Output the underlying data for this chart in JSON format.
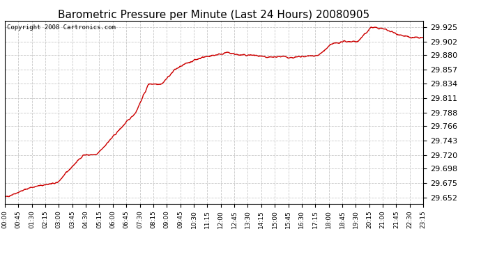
{
  "title": "Barometric Pressure per Minute (Last 24 Hours) 20080905",
  "copyright": "Copyright 2008 Cartronics.com",
  "line_color": "#cc0000",
  "background_color": "#ffffff",
  "plot_bg_color": "#ffffff",
  "grid_color": "#c8c8c8",
  "yticks": [
    29.652,
    29.675,
    29.698,
    29.72,
    29.743,
    29.766,
    29.788,
    29.811,
    29.834,
    29.857,
    29.88,
    29.902,
    29.925
  ],
  "ylim": [
    29.642,
    29.935
  ],
  "xtick_labels": [
    "00:00",
    "00:45",
    "01:30",
    "02:15",
    "03:00",
    "03:45",
    "04:30",
    "05:15",
    "06:00",
    "06:45",
    "07:30",
    "08:15",
    "09:00",
    "09:45",
    "10:30",
    "11:15",
    "12:00",
    "12:45",
    "13:30",
    "14:15",
    "15:00",
    "15:45",
    "16:30",
    "17:15",
    "18:00",
    "18:45",
    "19:30",
    "20:15",
    "21:00",
    "21:45",
    "22:30",
    "23:15"
  ],
  "title_fontsize": 11,
  "copyright_fontsize": 6.5,
  "ytick_fontsize": 8,
  "xtick_fontsize": 6.5,
  "line_width": 1.0,
  "control_t": [
    0,
    45,
    90,
    135,
    180,
    225,
    270,
    315,
    360,
    405,
    450,
    495,
    540,
    585,
    630,
    675,
    720,
    765,
    810,
    855,
    900,
    945,
    990,
    1035,
    1080,
    1125,
    1170,
    1215,
    1260,
    1305,
    1350,
    1395,
    1439
  ],
  "control_p": [
    29.652,
    29.66,
    29.668,
    29.672,
    29.675,
    29.698,
    29.72,
    29.72,
    29.743,
    29.766,
    29.788,
    29.834,
    29.834,
    29.857,
    29.868,
    29.876,
    29.88,
    29.884,
    29.88,
    29.88,
    29.876,
    29.878,
    29.876,
    29.878,
    29.88,
    29.898,
    29.902,
    29.902,
    29.925,
    29.922,
    29.914,
    29.908,
    29.908
  ]
}
